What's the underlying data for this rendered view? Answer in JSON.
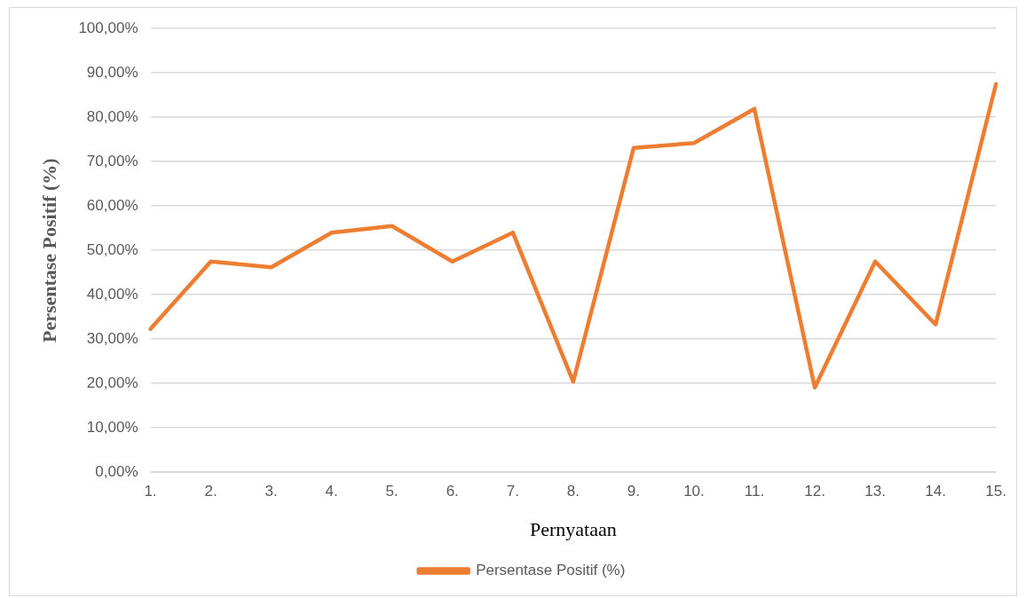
{
  "chart_data": {
    "type": "line",
    "xlabel": "Pernyataan",
    "ylabel": "Persentase Positif (%)",
    "categories": [
      "1.",
      "2.",
      "3.",
      "4.",
      "5.",
      "6.",
      "7.",
      "8.",
      "9.",
      "10.",
      "11.",
      "12.",
      "13.",
      "14.",
      "15."
    ],
    "series": [
      {
        "name": "Persentase Positif (%)",
        "color": "#ed7d31",
        "values": [
          32.3,
          47.5,
          46.2,
          54.0,
          55.5,
          47.5,
          54.0,
          20.4,
          73.1,
          74.2,
          81.9,
          19.1,
          47.5,
          33.3,
          87.5
        ]
      }
    ],
    "ylim": [
      0,
      100
    ],
    "yticks": [
      {
        "value": 0,
        "label": "0,00%"
      },
      {
        "value": 10,
        "label": "10,00%"
      },
      {
        "value": 20,
        "label": "20,00%"
      },
      {
        "value": 30,
        "label": "30,00%"
      },
      {
        "value": 40,
        "label": "40,00%"
      },
      {
        "value": 50,
        "label": "50,00%"
      },
      {
        "value": 60,
        "label": "60,00%"
      },
      {
        "value": 70,
        "label": "70,00%"
      },
      {
        "value": 80,
        "label": "80,00%"
      },
      {
        "value": 90,
        "label": "90,00%"
      },
      {
        "value": 100,
        "label": "100,00%"
      }
    ],
    "grid": "y",
    "legend": "bottom",
    "marker": "none",
    "line_style": "solid"
  }
}
